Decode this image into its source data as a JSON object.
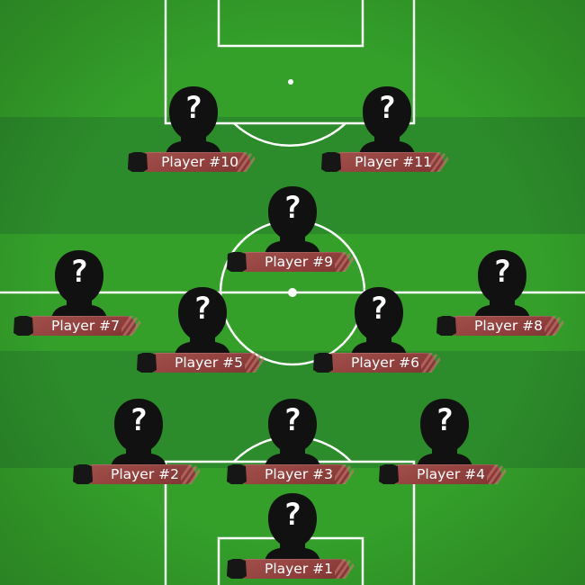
{
  "colors": {
    "pitch_light": "#34a02a",
    "pitch_dark": "#2b8a29",
    "line": "#ffffff",
    "silhouette": "#111111",
    "nameplate": "#93413e"
  },
  "icons": {
    "player_placeholder": "person-silhouette-icon",
    "question_mark": "?",
    "shirt": "shirt-icon"
  },
  "players": [
    {
      "id": "p10",
      "label": "Player #10"
    },
    {
      "id": "p11",
      "label": "Player #11"
    },
    {
      "id": "p9",
      "label": "Player #9"
    },
    {
      "id": "p7",
      "label": "Player #7"
    },
    {
      "id": "p8",
      "label": "Player #8"
    },
    {
      "id": "p5",
      "label": "Player #5"
    },
    {
      "id": "p6",
      "label": "Player #6"
    },
    {
      "id": "p2",
      "label": "Player #2"
    },
    {
      "id": "p3",
      "label": "Player #3"
    },
    {
      "id": "p4",
      "label": "Player #4"
    },
    {
      "id": "p1",
      "label": "Player #1"
    }
  ]
}
